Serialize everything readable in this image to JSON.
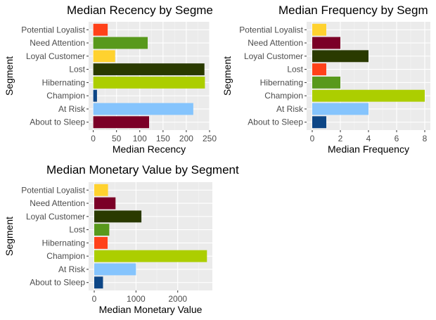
{
  "chart_data": [
    {
      "type": "bar",
      "orientation": "horizontal",
      "title": "Median Recency by Segme",
      "xlabel": "Median Recency",
      "ylabel": "Segment",
      "categories": [
        "About to Sleep",
        "At Risk",
        "Champion",
        "Hibernating",
        "Lost",
        "Loyal Customer",
        "Need Attention",
        "Potential Loyalist"
      ],
      "values": [
        120,
        215,
        8,
        240,
        239,
        47,
        117,
        31
      ],
      "colors": [
        "#7b0027",
        "#85c4fd",
        "#0d4686",
        "#acce00",
        "#2a3a00",
        "#ffd22f",
        "#58991c",
        "#ff4119"
      ],
      "xlim": [
        -10,
        250
      ],
      "xticks": [
        0,
        50,
        100,
        150,
        200,
        250
      ],
      "xtick_labels": [
        "0",
        "50",
        "100",
        "150",
        "200",
        "250"
      ],
      "grid": true
    },
    {
      "type": "bar",
      "orientation": "horizontal",
      "title": "Median Frequency by Segm",
      "xlabel": "Median Frequency",
      "ylabel": "Segment",
      "categories": [
        "About to Sleep",
        "At Risk",
        "Champion",
        "Hibernating",
        "Lost",
        "Loyal Customer",
        "Need Attention",
        "Potential Loyalist"
      ],
      "values": [
        1,
        4,
        8,
        2,
        1,
        4,
        2,
        1
      ],
      "colors": [
        "#0d4686",
        "#85c4fd",
        "#acce00",
        "#58991c",
        "#ff4119",
        "#2a3a00",
        "#7b0027",
        "#ffd22f"
      ],
      "xlim": [
        -0.4,
        8.4
      ],
      "xticks": [
        0,
        2,
        4,
        6,
        8
      ],
      "xtick_labels": [
        "0",
        "2",
        "4",
        "6",
        "8"
      ],
      "grid": true
    },
    {
      "type": "bar",
      "orientation": "horizontal",
      "title": "Median Monetary Value by Segment",
      "xlabel": "Median Monetary Value",
      "ylabel": "Segment",
      "categories": [
        "About to Sleep",
        "At Risk",
        "Champion",
        "Hibernating",
        "Lost",
        "Loyal Customer",
        "Need Attention",
        "Potential Loyalist"
      ],
      "values": [
        210,
        1000,
        2700,
        320,
        360,
        1130,
        510,
        330
      ],
      "colors": [
        "#0d4686",
        "#85c4fd",
        "#acce00",
        "#ff4119",
        "#58991c",
        "#2a3a00",
        "#7b0027",
        "#ffd22f"
      ],
      "xlim": [
        -135,
        2830
      ],
      "xticks": [
        0,
        1000,
        2000
      ],
      "xtick_labels": [
        "0",
        "1000",
        "2000"
      ],
      "grid": true
    }
  ]
}
